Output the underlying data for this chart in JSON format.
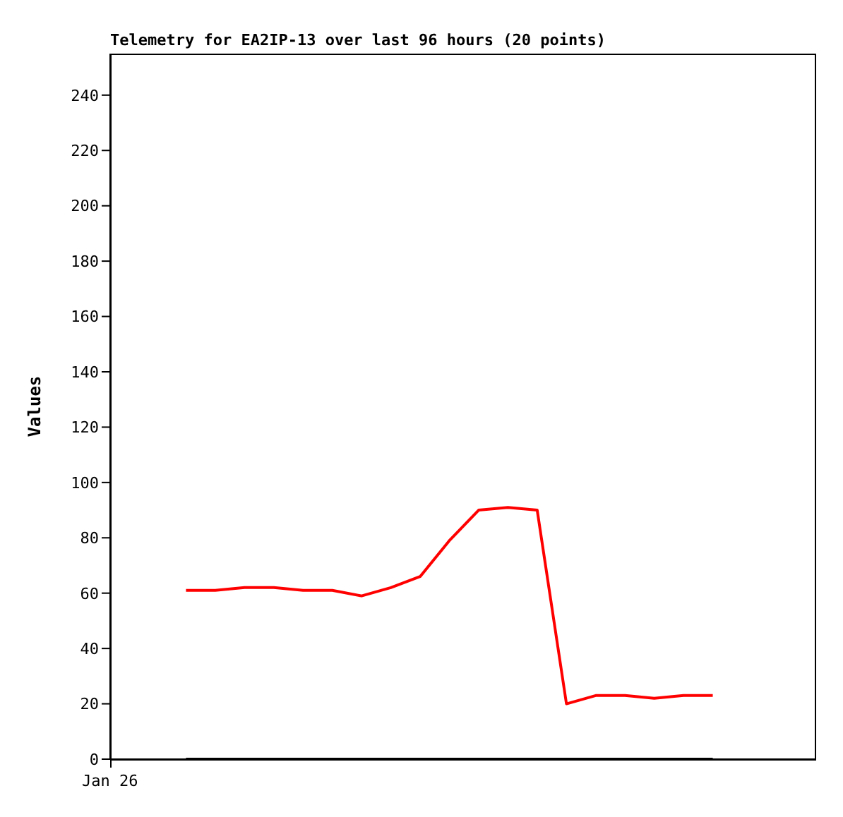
{
  "chart_data": {
    "type": "line",
    "title": "Telemetry for EA2IP-13 over last 96 hours (20 points)",
    "ylabel": "Values",
    "annotations": [
      "Jan 26"
    ],
    "categories": [
      null,
      null,
      null,
      null,
      null,
      null,
      null,
      null,
      null,
      null,
      null,
      null,
      null,
      null,
      null,
      null,
      null,
      null,
      null
    ],
    "ylim": [
      0,
      255
    ],
    "yticks": [
      0,
      20,
      40,
      60,
      80,
      100,
      120,
      140,
      160,
      180,
      200,
      220,
      240
    ],
    "marker": "none",
    "line_style": "solid",
    "series": [
      {
        "color": "#ff0000",
        "values": [
          61,
          61,
          62,
          62,
          61,
          61,
          59,
          62,
          66,
          79,
          90,
          91,
          90,
          20,
          23,
          23,
          22,
          23,
          23
        ]
      },
      {
        "color": "#000000",
        "values": [
          0,
          0,
          0,
          0,
          0,
          0,
          0,
          0,
          0,
          0,
          0,
          0,
          0,
          0,
          0,
          0,
          0,
          0,
          0
        ]
      }
    ]
  }
}
